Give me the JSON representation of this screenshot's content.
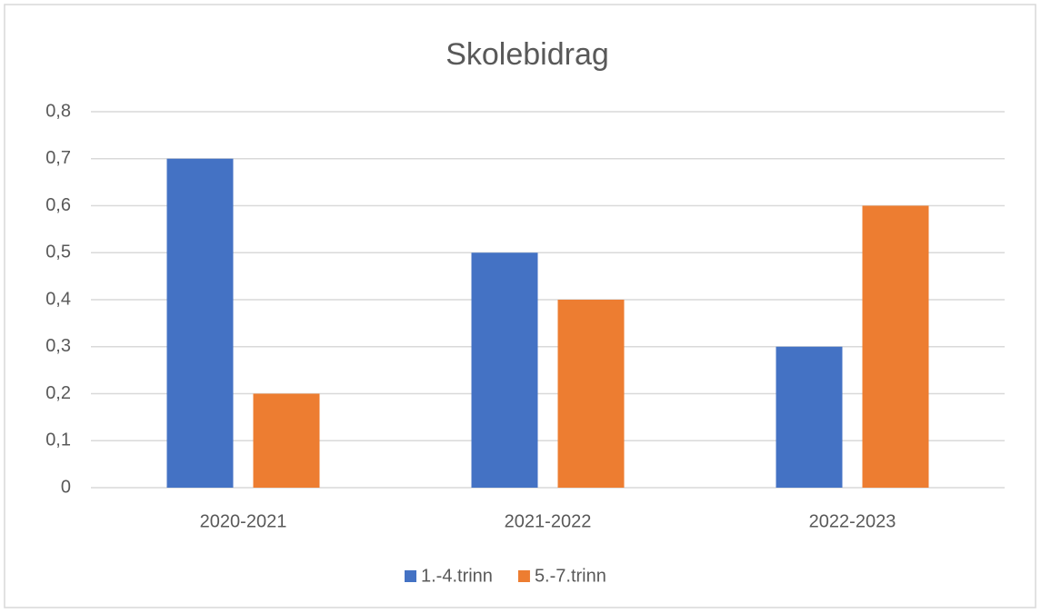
{
  "chart_data": {
    "type": "bar",
    "title": "Skolebidrag",
    "categories": [
      "2020-2021",
      "2021-2022",
      "2022-2023"
    ],
    "series": [
      {
        "name": "1.-4.trinn",
        "color": "#4472c4",
        "values": [
          0.7,
          0.5,
          0.3
        ]
      },
      {
        "name": "5.-7.trinn",
        "color": "#ed7d31",
        "values": [
          0.2,
          0.4,
          0.6
        ]
      }
    ],
    "ylim": [
      0,
      0.8
    ],
    "yticks": [
      0,
      {
        "value": 0.1,
        "label": "0,1"
      },
      {
        "value": 0.2,
        "label": "0,2"
      },
      {
        "value": 0.3,
        "label": "0,3"
      },
      {
        "value": 0.4,
        "label": "0,4"
      },
      {
        "value": 0.5,
        "label": "0,5"
      },
      {
        "value": 0.6,
        "label": "0,6"
      },
      {
        "value": 0.7,
        "label": "0,7"
      },
      {
        "value": 0.8,
        "label": "0,8"
      }
    ],
    "grid": true,
    "legend": "bottom"
  }
}
